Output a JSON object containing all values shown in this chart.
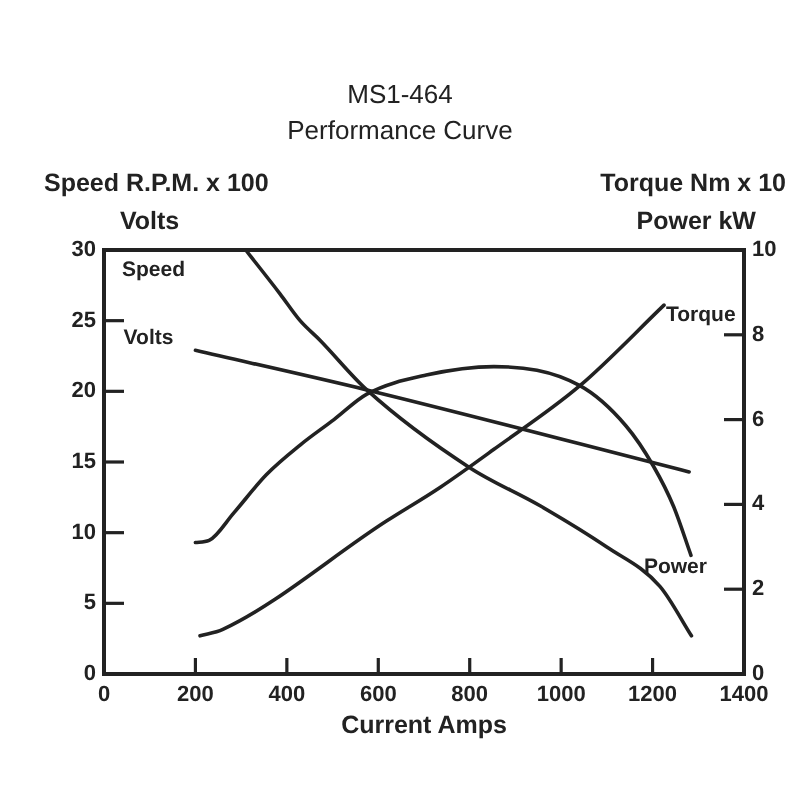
{
  "chart_data": {
    "type": "line",
    "title": "MS1-464",
    "subtitle": "Performance Curve",
    "xlabel": "Current Amps",
    "ylabel": "Speed R.P.M. x 100\nVolts",
    "y2label": "Torque Nm x 10\nPower kW",
    "series": [
      {
        "name": "Speed",
        "color": "#222222",
        "x": [
          310,
          385,
          429,
          473,
          575,
          800,
          954,
          1099,
          1216,
          1285
        ],
        "values": [
          30,
          26.9,
          25.0,
          23.6,
          20.1,
          14.6,
          11.9,
          9.0,
          6.2,
          2.7
        ]
      },
      {
        "name": "Volts",
        "color": "#222222",
        "x": [
          200,
          575,
          1280
        ],
        "values": [
          22.9,
          20.1,
          14.3
        ]
      },
      {
        "name": "Torque",
        "color": "#222222",
        "axis": "y2",
        "x": [
          210,
          260,
          617,
          735,
          853,
          1041,
          1225
        ],
        "values": [
          0.9,
          1.05,
          3.6,
          4.4,
          5.3,
          6.8,
          8.7
        ]
      },
      {
        "name": "Power",
        "color": "#222222",
        "axis": "y2",
        "x": [
          200,
          230,
          284,
          355,
          429,
          503,
          575,
          705,
          853,
          1041,
          1142,
          1202,
          1246,
          1284
        ],
        "values": [
          3.1,
          3.15,
          3.8,
          4.7,
          5.4,
          6.0,
          6.6,
          7.05,
          7.25,
          6.8,
          5.85,
          4.9,
          3.95,
          2.8
        ]
      }
    ],
    "xlim": [
      0,
      1400
    ],
    "xticks": [
      0,
      200,
      400,
      600,
      800,
      1000,
      1200,
      1400
    ],
    "ylim": [
      0,
      30
    ],
    "yticks": [
      0,
      5,
      10,
      15,
      20,
      25,
      30
    ],
    "y2lim": [
      0,
      10
    ],
    "y2ticks": [
      0,
      2,
      4,
      6,
      8,
      10
    ],
    "grid": false,
    "legend": false,
    "marker": "none"
  }
}
